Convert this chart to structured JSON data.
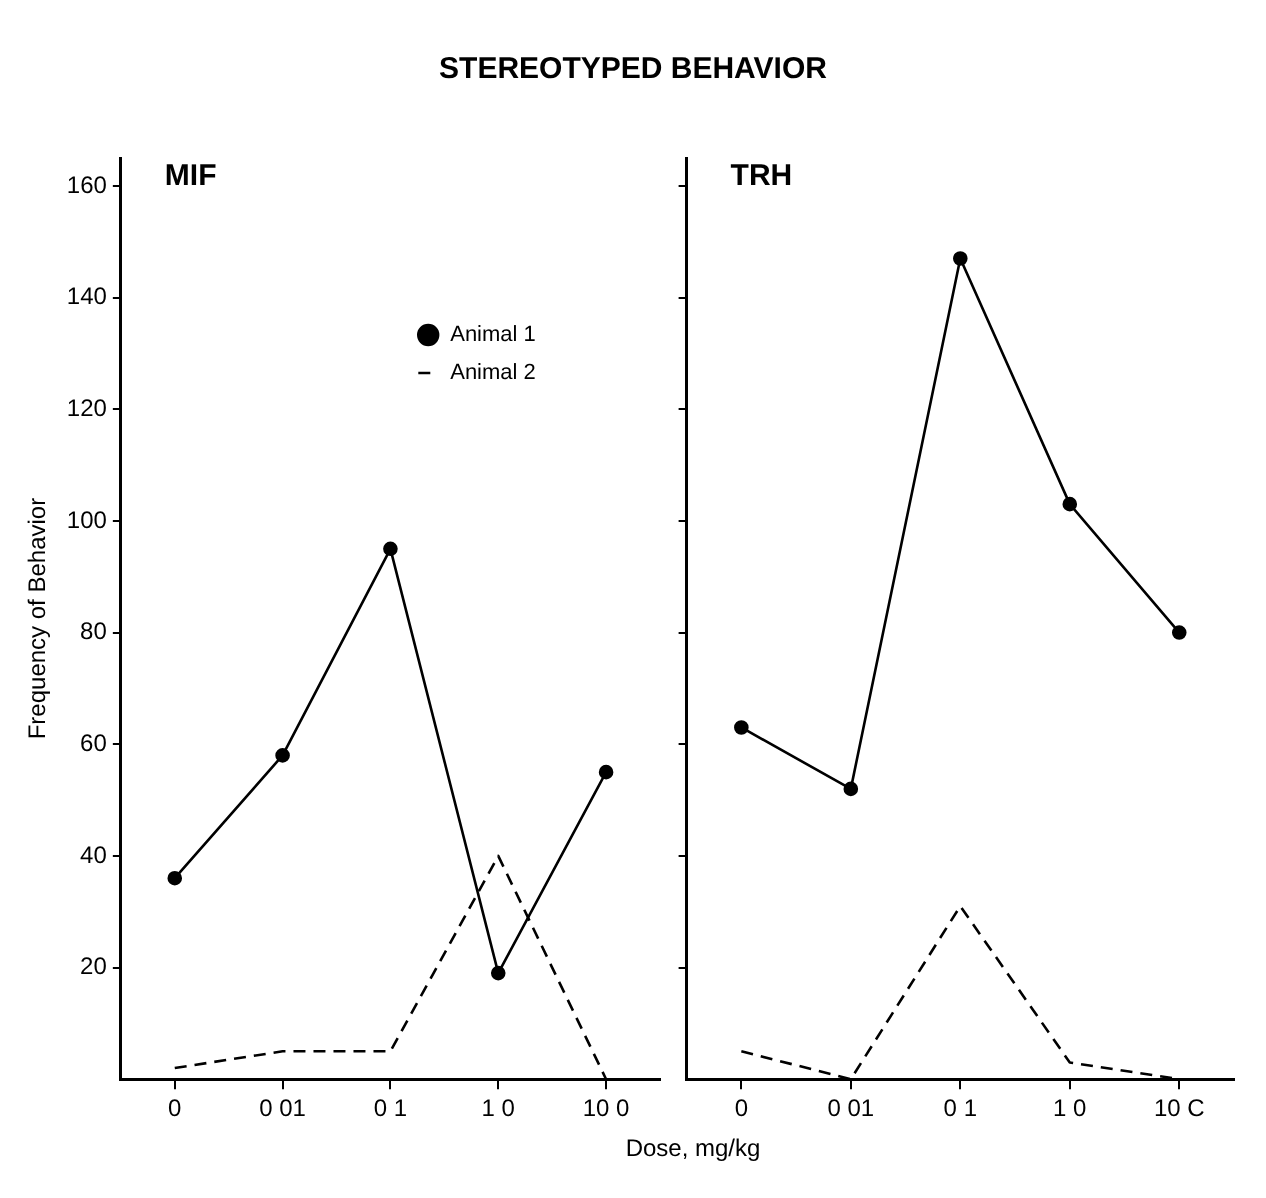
{
  "chart_data": [
    {
      "type": "line",
      "title": "STEREOTYPED BEHAVIOR",
      "subtitle": "MIF",
      "xlabel": "Dose, mg/kg",
      "ylabel": "Frequency of Behavior",
      "categories": [
        "0",
        "0 01",
        "0 1",
        "1 0",
        "10 0"
      ],
      "series": [
        {
          "name": "Animal 1",
          "color": "#000000",
          "values": [
            36,
            58,
            95,
            19,
            55
          ],
          "marker": "circle",
          "line_style": "solid"
        },
        {
          "name": "Animal 2",
          "color": "#000000",
          "values": [
            2,
            5,
            5,
            40,
            0
          ],
          "marker": "none",
          "line_style": "dashed"
        }
      ],
      "ylim": [
        0,
        165
      ],
      "yticks": [
        20,
        40,
        60,
        80,
        100,
        120,
        140,
        160
      ],
      "grid": false,
      "legend": "top right"
    },
    {
      "type": "line",
      "subtitle": "TRH",
      "categories": [
        "0",
        "0 01",
        "0 1",
        "1 0",
        "10 C"
      ],
      "series": [
        {
          "color": "#000000",
          "values": [
            63,
            52,
            147,
            103,
            80
          ],
          "marker": "circle",
          "line_style": "solid"
        },
        {
          "color": "#000000",
          "values": [
            5,
            0,
            31,
            3,
            0
          ],
          "marker": "none",
          "line_style": "dashed"
        }
      ],
      "ylim": [
        0,
        165
      ],
      "yticks": [
        20,
        40,
        60,
        80,
        100,
        120,
        140,
        160
      ],
      "grid": false,
      "legend": false,
      "tick_labels": "x"
    }
  ]
}
